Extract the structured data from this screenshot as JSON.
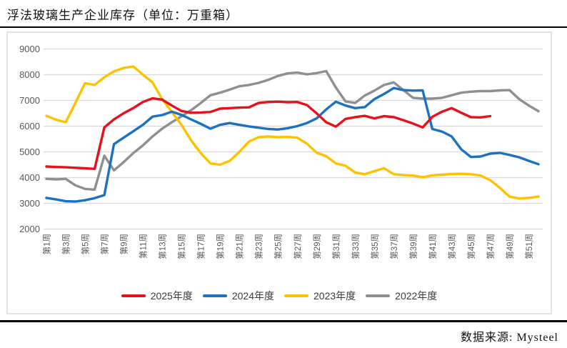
{
  "title": "浮法玻璃生产企业库存（单位：万重箱）",
  "source": "数据来源: Mysteel",
  "colors": {
    "red_2025": "#e8101b",
    "blue_2024": "#1b72c0",
    "yellow_2023": "#fdc300",
    "gray_2022": "#8f8f8f",
    "grid": "#d9d9d9",
    "axis_text": "#595959"
  },
  "chart_data": {
    "type": "line",
    "title": "浮法玻璃生产企业库存",
    "unit": "万重箱",
    "xlabel": "",
    "ylabel": "",
    "ylim": [
      2000,
      9000
    ],
    "y_ticks": [
      2000,
      3000,
      4000,
      5000,
      6000,
      7000,
      8000,
      9000
    ],
    "grid": true,
    "legend_position": "bottom",
    "weeks_total": 52,
    "x_tick_labels": [
      "第1周",
      "第3周",
      "第5周",
      "第7周",
      "第9周",
      "第11周",
      "第13周",
      "第15周",
      "第17周",
      "第19周",
      "第21周",
      "第23周",
      "第25周",
      "第27周",
      "第29周",
      "第31周",
      "第33周",
      "第35周",
      "第37周",
      "第39周",
      "第41周",
      "第43周",
      "第45周",
      "第47周",
      "第49周",
      "第51周"
    ],
    "series": [
      {
        "name": "2025年度",
        "color": "#e8101b",
        "start_week": 1,
        "values": [
          4430,
          4410,
          4400,
          4380,
          4360,
          4340,
          5950,
          6260,
          6500,
          6700,
          6940,
          7080,
          7030,
          6800,
          6590,
          6520,
          6530,
          6550,
          6680,
          6700,
          6720,
          6730,
          6900,
          6940,
          6950,
          6930,
          6940,
          6820,
          6500,
          6150,
          5980,
          6280,
          6350,
          6400,
          6300,
          6390,
          6350,
          6230,
          6100,
          5950,
          6360,
          6560,
          6700,
          6520,
          6350,
          6340,
          6390
        ]
      },
      {
        "name": "2024年度",
        "color": "#1b72c0",
        "start_week": 1,
        "values": [
          3210,
          3150,
          3080,
          3070,
          3120,
          3200,
          3320,
          5300,
          5550,
          5800,
          6050,
          6370,
          6430,
          6560,
          6440,
          6260,
          6090,
          5900,
          6050,
          6120,
          6050,
          5990,
          5940,
          5890,
          5870,
          5920,
          6000,
          6120,
          6300,
          6650,
          6950,
          6800,
          6700,
          6740,
          7050,
          7250,
          7480,
          7400,
          7380,
          7390,
          5890,
          5790,
          5600,
          5100,
          4800,
          4820,
          4930,
          4960,
          4880,
          4790,
          4650,
          4520
        ]
      },
      {
        "name": "2023年度",
        "color": "#fdc300",
        "start_week": 1,
        "values": [
          6400,
          6250,
          6150,
          6900,
          7670,
          7600,
          7900,
          8130,
          8260,
          8320,
          8000,
          7700,
          7050,
          6550,
          6050,
          5450,
          4950,
          4550,
          4500,
          4650,
          5000,
          5400,
          5570,
          5600,
          5570,
          5580,
          5550,
          5320,
          4970,
          4830,
          4550,
          4460,
          4200,
          4130,
          4250,
          4360,
          4130,
          4100,
          4080,
          4010,
          4090,
          4110,
          4140,
          4150,
          4130,
          4080,
          3900,
          3600,
          3260,
          3190,
          3210,
          3260
        ]
      },
      {
        "name": "2022年度",
        "color": "#8f8f8f",
        "start_week": 1,
        "values": [
          3950,
          3930,
          3950,
          3700,
          3560,
          3530,
          4850,
          4280,
          4600,
          4950,
          5250,
          5600,
          5900,
          6150,
          6380,
          6620,
          6900,
          7200,
          7300,
          7420,
          7550,
          7600,
          7680,
          7800,
          7950,
          8050,
          8080,
          8010,
          8060,
          8140,
          7500,
          6960,
          6900,
          7190,
          7380,
          7600,
          7700,
          7400,
          7100,
          7070,
          7070,
          7100,
          7200,
          7300,
          7340,
          7360,
          7360,
          7390,
          7400,
          7050,
          6800,
          6580
        ]
      }
    ]
  }
}
